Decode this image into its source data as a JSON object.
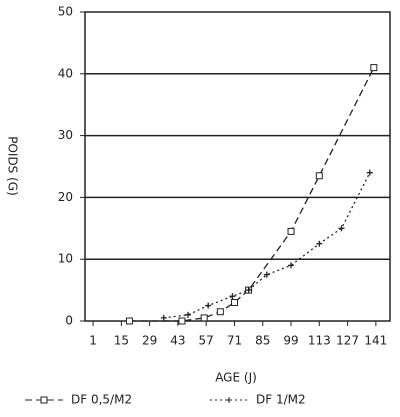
{
  "chart_data": {
    "type": "line",
    "x_label": "AGE (J)",
    "y_label": "POIDS (G)",
    "xlim": [
      -3,
      148
    ],
    "xticks": [
      1,
      15,
      29,
      43,
      57,
      71,
      85,
      99,
      113,
      127,
      141
    ],
    "ylim": [
      0,
      50
    ],
    "yticks": [
      0,
      10,
      20,
      30,
      40,
      50
    ],
    "grid": true,
    "series": [
      {
        "name": "DF 0,5/M2",
        "color": "#222222",
        "dash": "7 4",
        "marker": "square",
        "x": [
          19,
          45,
          56,
          64,
          71,
          78,
          99,
          113,
          140
        ],
        "values": [
          0,
          0,
          0.5,
          1.5,
          3,
          5,
          14.5,
          23.5,
          41
        ]
      },
      {
        "name": "DF 1/M2",
        "color": "#222222",
        "dash": "2 3",
        "marker": "plus",
        "x": [
          36,
          48,
          58,
          70,
          78,
          87,
          99,
          113,
          124,
          138
        ],
        "values": [
          0.5,
          1,
          2.5,
          4,
          5,
          7.5,
          9,
          12.5,
          15,
          24
        ]
      }
    ]
  }
}
